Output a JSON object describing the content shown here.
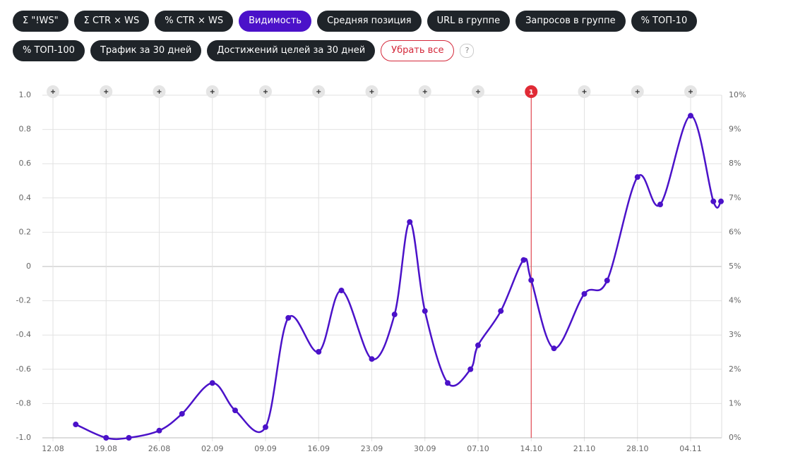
{
  "toolbar": {
    "buttons": [
      {
        "label": "Σ \"!WS\"",
        "active": false
      },
      {
        "label": "Σ CTR × WS",
        "active": false
      },
      {
        "label": "% CTR × WS",
        "active": false
      },
      {
        "label": "Видимость",
        "active": true
      },
      {
        "label": "Средняя позиция",
        "active": false
      },
      {
        "label": "URL в группе",
        "active": false
      },
      {
        "label": "Запросов в группе",
        "active": false
      },
      {
        "label": "% ТОП-10",
        "active": false
      },
      {
        "label": "% ТОП-100",
        "active": false
      },
      {
        "label": "Трафик за 30 дней",
        "active": false
      },
      {
        "label": "Достижений целей за 30 дней",
        "active": false
      }
    ],
    "clear": "Убрать все",
    "help": "?"
  },
  "chart_data": {
    "type": "line",
    "x": [
      "15.08",
      "19.08",
      "22.08",
      "26.08",
      "29.08",
      "02.09",
      "05.09",
      "09.09",
      "12.09",
      "16.09",
      "19.09",
      "23.09",
      "26.09",
      "28.09",
      "30.09",
      "03.10",
      "06.10",
      "07.10",
      "10.10",
      "13.10",
      "14.10",
      "17.10",
      "21.10",
      "24.10",
      "28.10",
      "31.10",
      "04.11",
      "07.11",
      "08.11"
    ],
    "series": [
      {
        "name": "Видимость",
        "color": "#4b12c9",
        "axis": "y2",
        "values": [
          0.39,
          0,
          0,
          0.21,
          0.7,
          1.6,
          0.8,
          0.31,
          3.5,
          2.51,
          4.3,
          2.3,
          3.6,
          6.3,
          3.7,
          1.6,
          2.0,
          2.7,
          3.7,
          5.19,
          4.6,
          2.61,
          4.2,
          4.59,
          7.61,
          6.81,
          9.4,
          6.9,
          6.9
        ]
      }
    ],
    "xticks": [
      "12.08",
      "19.08",
      "26.08",
      "02.09",
      "09.09",
      "16.09",
      "23.09",
      "30.09",
      "07.10",
      "14.10",
      "21.10",
      "28.10",
      "04.11"
    ],
    "ylim": [
      -1,
      1
    ],
    "yticks": [
      {
        "value": -1,
        "label": "-1.0"
      },
      -0.8,
      -0.6,
      -0.4,
      -0.2,
      0,
      0.2,
      0.4,
      0.6,
      0.8,
      {
        "value": 1,
        "label": "1.0"
      }
    ],
    "y2lim": [
      0,
      10
    ],
    "y2ticks": [
      {
        "value": 0,
        "label": "0%"
      },
      {
        "value": 1,
        "label": "1%"
      },
      {
        "value": 2,
        "label": "2%"
      },
      {
        "value": 3,
        "label": "3%"
      },
      {
        "value": 4,
        "label": "4%"
      },
      {
        "value": 5,
        "label": "5%"
      },
      {
        "value": 6,
        "label": "6%"
      },
      {
        "value": 7,
        "label": "7%"
      },
      {
        "value": 8,
        "label": "8%"
      },
      {
        "value": 9,
        "label": "9%"
      },
      {
        "value": 10,
        "label": "10%"
      }
    ],
    "grid": true,
    "annotations": [
      {
        "x": "14.10",
        "label": "1",
        "color": "#e02a35"
      }
    ]
  }
}
